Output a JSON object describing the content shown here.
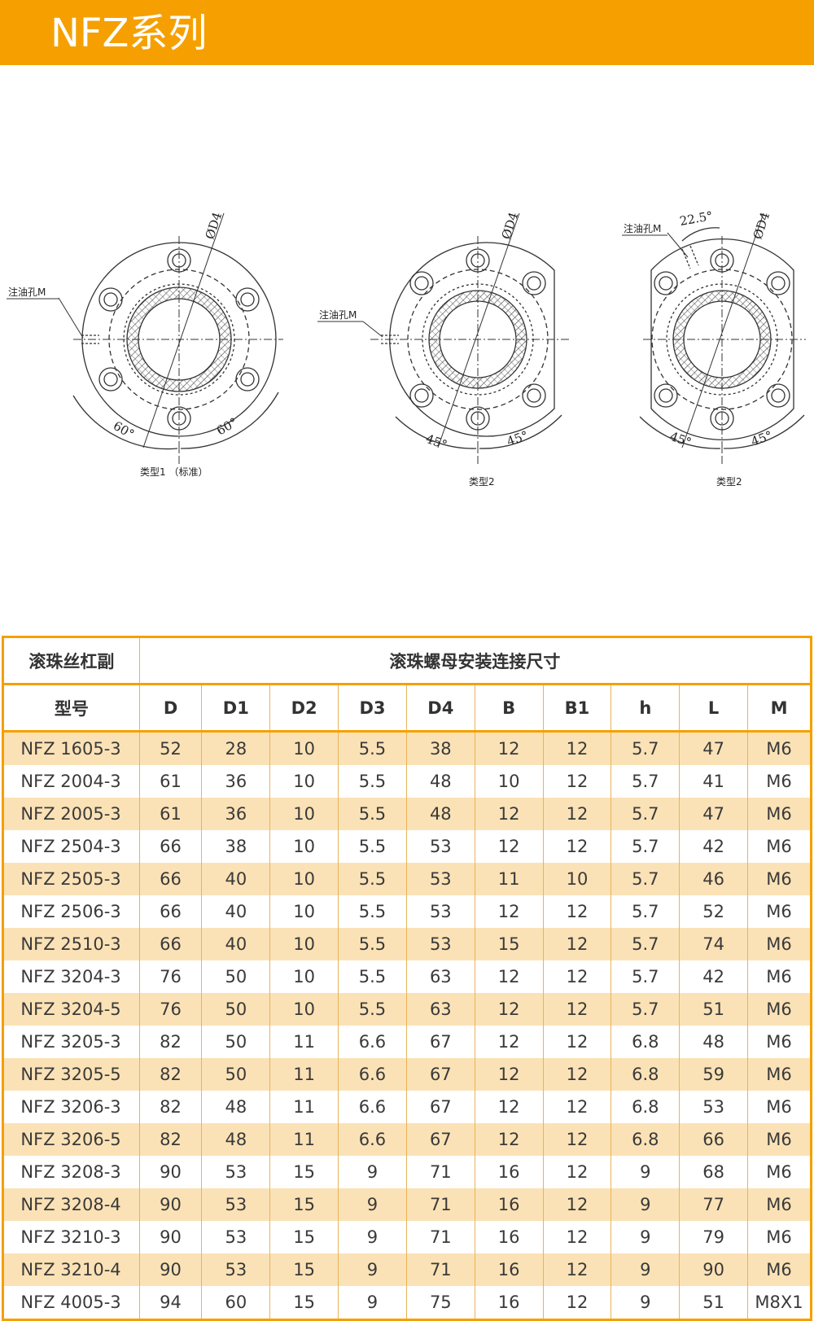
{
  "header": {
    "title": "NFZ系列"
  },
  "drawings": [
    {
      "caption": "类型1 （标准）",
      "oil_hole": "注油孔M",
      "diameter": "ØD4",
      "angle": "60°"
    },
    {
      "caption": "类型2",
      "oil_hole": "注油孔M",
      "diameter": "ØD4",
      "angle": "45°"
    },
    {
      "caption": "类型2",
      "oil_hole": "注油孔M",
      "diameter": "ØD4",
      "angle": "45°",
      "extra_angle": "22.5°"
    }
  ],
  "table": {
    "group_left": "滚珠丝杠副",
    "group_right": "滚珠螺母安装连接尺寸",
    "columns": [
      "型号",
      "D",
      "D1",
      "D2",
      "D3",
      "D4",
      "B",
      "B1",
      "h",
      "L",
      "M"
    ],
    "rows": [
      [
        "NFZ 1605-3",
        "52",
        "28",
        "10",
        "5.5",
        "38",
        "12",
        "12",
        "5.7",
        "47",
        "M6"
      ],
      [
        "NFZ 2004-3",
        "61",
        "36",
        "10",
        "5.5",
        "48",
        "10",
        "12",
        "5.7",
        "41",
        "M6"
      ],
      [
        "NFZ 2005-3",
        "61",
        "36",
        "10",
        "5.5",
        "48",
        "12",
        "12",
        "5.7",
        "47",
        "M6"
      ],
      [
        "NFZ 2504-3",
        "66",
        "38",
        "10",
        "5.5",
        "53",
        "12",
        "12",
        "5.7",
        "42",
        "M6"
      ],
      [
        "NFZ 2505-3",
        "66",
        "40",
        "10",
        "5.5",
        "53",
        "11",
        "10",
        "5.7",
        "46",
        "M6"
      ],
      [
        "NFZ 2506-3",
        "66",
        "40",
        "10",
        "5.5",
        "53",
        "12",
        "12",
        "5.7",
        "52",
        "M6"
      ],
      [
        "NFZ 2510-3",
        "66",
        "40",
        "10",
        "5.5",
        "53",
        "15",
        "12",
        "5.7",
        "74",
        "M6"
      ],
      [
        "NFZ 3204-3",
        "76",
        "50",
        "10",
        "5.5",
        "63",
        "12",
        "12",
        "5.7",
        "42",
        "M6"
      ],
      [
        "NFZ 3204-5",
        "76",
        "50",
        "10",
        "5.5",
        "63",
        "12",
        "12",
        "5.7",
        "51",
        "M6"
      ],
      [
        "NFZ 3205-3",
        "82",
        "50",
        "11",
        "6.6",
        "67",
        "12",
        "12",
        "6.8",
        "48",
        "M6"
      ],
      [
        "NFZ 3205-5",
        "82",
        "50",
        "11",
        "6.6",
        "67",
        "12",
        "12",
        "6.8",
        "59",
        "M6"
      ],
      [
        "NFZ 3206-3",
        "82",
        "48",
        "11",
        "6.6",
        "67",
        "12",
        "12",
        "6.8",
        "53",
        "M6"
      ],
      [
        "NFZ 3206-5",
        "82",
        "48",
        "11",
        "6.6",
        "67",
        "12",
        "12",
        "6.8",
        "66",
        "M6"
      ],
      [
        "NFZ 3208-3",
        "90",
        "53",
        "15",
        "9",
        "71",
        "16",
        "12",
        "9",
        "68",
        "M6"
      ],
      [
        "NFZ 3208-4",
        "90",
        "53",
        "15",
        "9",
        "71",
        "16",
        "12",
        "9",
        "77",
        "M6"
      ],
      [
        "NFZ 3210-3",
        "90",
        "53",
        "15",
        "9",
        "71",
        "16",
        "12",
        "9",
        "79",
        "M6"
      ],
      [
        "NFZ 3210-4",
        "90",
        "53",
        "15",
        "9",
        "71",
        "16",
        "12",
        "9",
        "90",
        "M6"
      ],
      [
        "NFZ 4005-3",
        "94",
        "60",
        "15",
        "9",
        "75",
        "16",
        "12",
        "9",
        "51",
        "M8X1"
      ]
    ]
  }
}
